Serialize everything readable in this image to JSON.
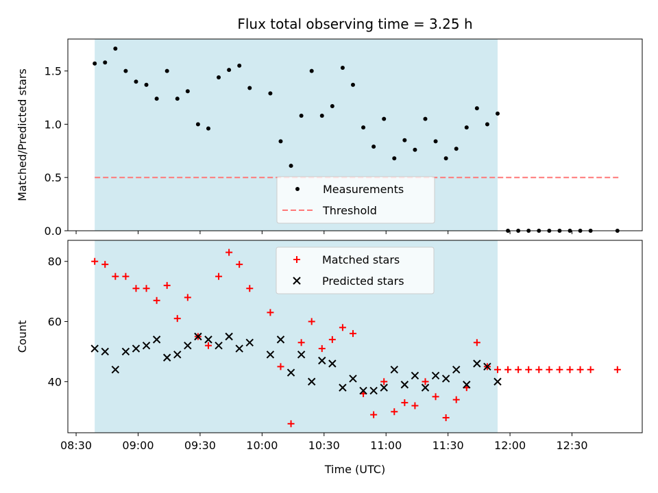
{
  "chart_data": {
    "type": "scatter",
    "title": "Flux total observing time = 3.25 h",
    "xlabel": "Time (UTC)",
    "x_tick_labels": [
      "08:30",
      "09:00",
      "09:30",
      "10:00",
      "10:30",
      "11:00",
      "11:30",
      "12:00",
      "12:30"
    ],
    "x_tick_minutes": [
      510,
      540,
      570,
      600,
      630,
      660,
      690,
      720,
      750
    ],
    "xlim_minutes": [
      506,
      784
    ],
    "shaded_interval_minutes": [
      519,
      714
    ],
    "colors": {
      "shade": "#add8e6",
      "matched": "#ff0000",
      "predicted": "#000000",
      "threshold": "#ff7777",
      "measurement": "#000000"
    },
    "panels": [
      {
        "name": "ratio",
        "ylabel": "Matched/Predicted stars",
        "ylim": [
          0,
          1.8
        ],
        "y_ticks": [
          0.0,
          0.5,
          1.0,
          1.5
        ],
        "y_tick_labels": [
          "0.0",
          "0.5",
          "1.0",
          "1.5"
        ],
        "legend_position": "lower-center",
        "legend": [
          {
            "label": "Measurements",
            "marker": "dot"
          },
          {
            "label": "Threshold",
            "marker": "dashed-line"
          }
        ],
        "threshold": {
          "x_range": [
            519,
            773
          ],
          "y": 0.5
        },
        "series": [
          {
            "name": "Measurements",
            "x": [
              519,
              524,
              529,
              534,
              539,
              544,
              549,
              554,
              559,
              564,
              569,
              574,
              579,
              584,
              589,
              594,
              604,
              609,
              614,
              619,
              624,
              629,
              634,
              639,
              644,
              649,
              654,
              659,
              664,
              669,
              674,
              679,
              684,
              689,
              694,
              699,
              704,
              709,
              714,
              719,
              724,
              729,
              734,
              739,
              744,
              749,
              754,
              759,
              772
            ],
            "y": [
              1.57,
              1.58,
              1.71,
              1.5,
              1.4,
              1.37,
              1.24,
              1.5,
              1.24,
              1.31,
              1.0,
              0.96,
              1.44,
              1.51,
              1.55,
              1.34,
              1.29,
              0.84,
              0.61,
              1.08,
              1.5,
              1.08,
              1.17,
              1.53,
              1.37,
              0.97,
              0.79,
              1.05,
              0.68,
              0.85,
              0.76,
              1.05,
              0.84,
              0.68,
              0.77,
              0.97,
              1.15,
              1.0,
              1.1,
              0,
              0,
              0,
              0,
              0,
              0,
              0,
              0,
              0,
              0
            ]
          }
        ]
      },
      {
        "name": "count",
        "ylabel": "Count",
        "ylim": [
          23,
          87
        ],
        "y_ticks": [
          40,
          60,
          80
        ],
        "y_tick_labels": [
          "40",
          "60",
          "80"
        ],
        "legend_position": "upper-center",
        "legend": [
          {
            "label": "Matched stars",
            "marker": "plus"
          },
          {
            "label": "Predicted stars",
            "marker": "x"
          }
        ],
        "series": [
          {
            "name": "Matched stars",
            "x": [
              519,
              524,
              529,
              534,
              539,
              544,
              549,
              554,
              559,
              564,
              569,
              574,
              579,
              584,
              589,
              594,
              604,
              609,
              614,
              619,
              624,
              629,
              634,
              639,
              644,
              649,
              654,
              659,
              664,
              669,
              674,
              679,
              684,
              689,
              694,
              699,
              704,
              709,
              714,
              719,
              724,
              729,
              734,
              739,
              744,
              749,
              754,
              759,
              772
            ],
            "y": [
              80,
              79,
              75,
              75,
              71,
              71,
              67,
              72,
              61,
              68,
              55,
              52,
              75,
              83,
              79,
              71,
              63,
              45,
              26,
              53,
              60,
              51,
              54,
              58,
              56,
              36,
              29,
              40,
              30,
              33,
              32,
              40,
              35,
              28,
              34,
              38,
              53,
              45,
              44,
              44,
              44,
              44,
              44,
              44,
              44,
              44,
              44,
              44,
              44
            ]
          },
          {
            "name": "Predicted stars",
            "x": [
              519,
              524,
              529,
              534,
              539,
              544,
              549,
              554,
              559,
              564,
              569,
              574,
              579,
              584,
              589,
              594,
              604,
              609,
              614,
              619,
              624,
              629,
              634,
              639,
              644,
              649,
              654,
              659,
              664,
              669,
              674,
              679,
              684,
              689,
              694,
              699,
              704,
              709,
              714
            ],
            "y": [
              51,
              50,
              44,
              50,
              51,
              52,
              54,
              48,
              49,
              52,
              55,
              54,
              52,
              55,
              51,
              53,
              49,
              54,
              43,
              49,
              40,
              47,
              46,
              38,
              41,
              37,
              37,
              38,
              44,
              39,
              42,
              38,
              42,
              41,
              44,
              39,
              46,
              45,
              40
            ]
          }
        ]
      }
    ]
  }
}
